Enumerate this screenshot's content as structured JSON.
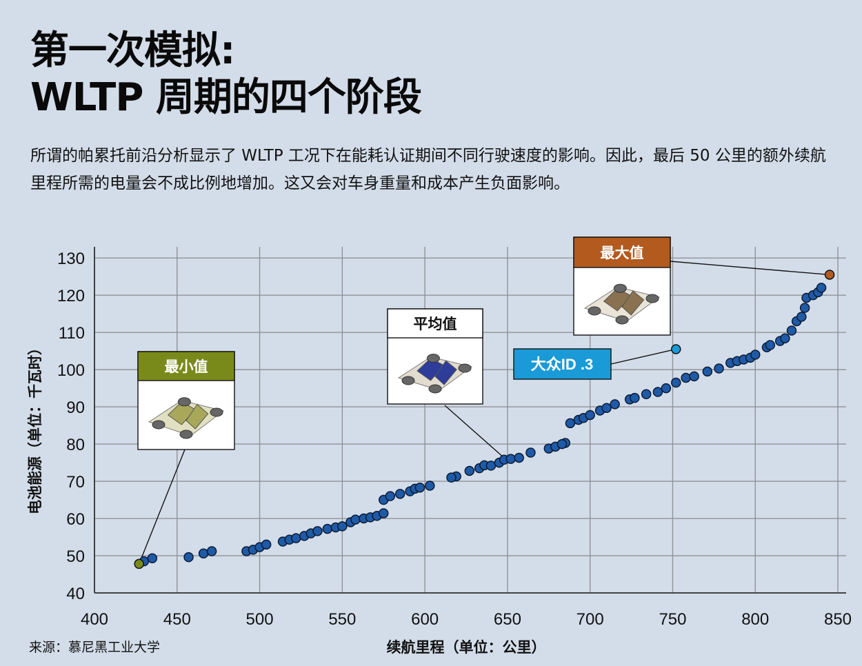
{
  "title": {
    "line1": "第一次模拟:",
    "line2": "WLTP 周期的四个阶段"
  },
  "description": "所谓的帕累托前沿分析显示了 WLTP 工况下在能耗认证期间不同行驶速度的影响。因此，最后 50 公里的额外续航里程所需的电量会不成比例地增加。这又会对车身重量和成本产生负面影响。",
  "source": "来源：慕尼黑工业大学",
  "colors": {
    "background": "#d3dde9",
    "point": "#1f5aa6",
    "min": "#7a8a1a",
    "max": "#b35a1e",
    "vw": "#1a9ad6",
    "avg_label": "#ffffff"
  },
  "chart_data": {
    "type": "scatter",
    "xlabel": "续航里程（单位：公里）",
    "ylabel": "电池能源（单位：千瓦时）",
    "xlim": [
      400,
      855
    ],
    "ylim": [
      40,
      133
    ],
    "xticks": [
      400,
      450,
      500,
      550,
      600,
      650,
      700,
      750,
      800,
      850
    ],
    "yticks": [
      40,
      50,
      60,
      70,
      80,
      90,
      100,
      110,
      120,
      130
    ],
    "grid": true,
    "points": [
      [
        430,
        48.5
      ],
      [
        435,
        49.3
      ],
      [
        457,
        49.6
      ],
      [
        466,
        50.6
      ],
      [
        471,
        51.2
      ],
      [
        492,
        51.2
      ],
      [
        496,
        51.6
      ],
      [
        500,
        52.3
      ],
      [
        504,
        53
      ],
      [
        514,
        53.8
      ],
      [
        518,
        54.3
      ],
      [
        522,
        54.7
      ],
      [
        527,
        55.3
      ],
      [
        531,
        56
      ],
      [
        535,
        56.6
      ],
      [
        541,
        57.2
      ],
      [
        546,
        57.6
      ],
      [
        550,
        57.9
      ],
      [
        555,
        59
      ],
      [
        558,
        59.7
      ],
      [
        563,
        60
      ],
      [
        567,
        60.3
      ],
      [
        571,
        60.7
      ],
      [
        575,
        61.4
      ],
      [
        575,
        65
      ],
      [
        579,
        66
      ],
      [
        585,
        66.6
      ],
      [
        591,
        67.3
      ],
      [
        594,
        68
      ],
      [
        597,
        68.3
      ],
      [
        603,
        68.8
      ],
      [
        619,
        71.3
      ],
      [
        616,
        71
      ],
      [
        627,
        72.8
      ],
      [
        633,
        73.5
      ],
      [
        636,
        74.3
      ],
      [
        640,
        74.2
      ],
      [
        645,
        75
      ],
      [
        648,
        75.8
      ],
      [
        652,
        76
      ],
      [
        657,
        76.3
      ],
      [
        664,
        77.7
      ],
      [
        675,
        78.8
      ],
      [
        679,
        79.3
      ],
      [
        685,
        80.3
      ],
      [
        683,
        80
      ],
      [
        688,
        85.6
      ],
      [
        693,
        86.5
      ],
      [
        696,
        87
      ],
      [
        700,
        87.8
      ],
      [
        706,
        89
      ],
      [
        710,
        89.7
      ],
      [
        715,
        90.7
      ],
      [
        724,
        92
      ],
      [
        727,
        92.4
      ],
      [
        734,
        93.4
      ],
      [
        741,
        94
      ],
      [
        746,
        95
      ],
      [
        752,
        96.5
      ],
      [
        758,
        97.8
      ],
      [
        763,
        98.2
      ],
      [
        771,
        99.5
      ],
      [
        778,
        100.3
      ],
      [
        785,
        101.8
      ],
      [
        789,
        102.3
      ],
      [
        793,
        102.7
      ],
      [
        797,
        103.2
      ],
      [
        800,
        104
      ],
      [
        807,
        106
      ],
      [
        809,
        106.6
      ],
      [
        815,
        107.7
      ],
      [
        818,
        108.4
      ],
      [
        822,
        110.5
      ],
      [
        825,
        113
      ],
      [
        828,
        114.2
      ],
      [
        830,
        116.6
      ],
      [
        831,
        119.3
      ],
      [
        835,
        120
      ],
      [
        838,
        120.8
      ],
      [
        840,
        122
      ]
    ],
    "highlights": [
      {
        "key": "min",
        "label": "最小值",
        "x": 427,
        "y": 47.8
      },
      {
        "key": "avg",
        "label": "平均值",
        "x": 650,
        "y": 75.5
      },
      {
        "key": "vw",
        "label": "大众ID .3",
        "x": 752,
        "y": 105.5
      },
      {
        "key": "max",
        "label": "最大值",
        "x": 845,
        "y": 125.5
      }
    ]
  }
}
